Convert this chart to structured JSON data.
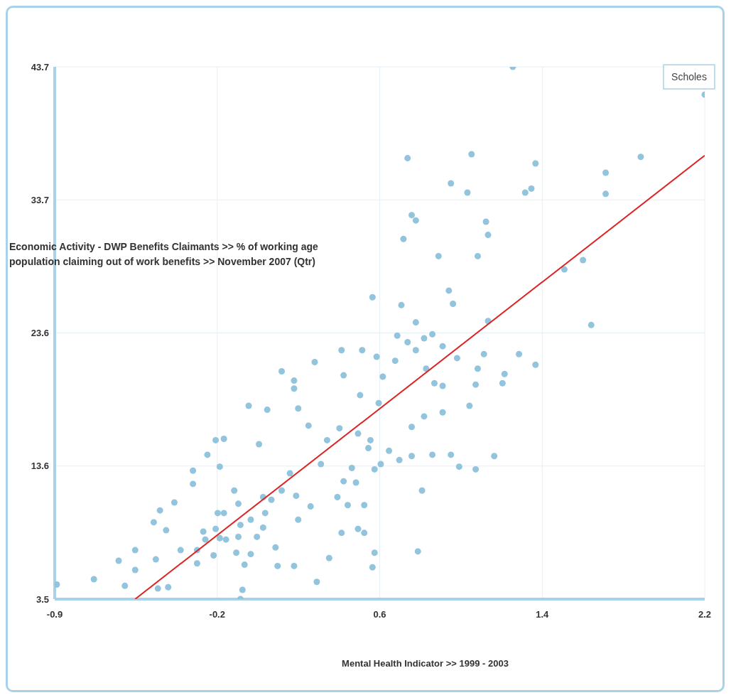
{
  "chart_data": {
    "type": "scatter",
    "xlabel": "Mental Health Indicator >>  1999 - 2003",
    "ylabel": "Economic Activity - DWP Benefits Claimants >> % of working age population claiming out of work benefits >>  November 2007 (Qtr)",
    "xlim": [
      -0.95,
      2.2
    ],
    "xticks": [
      {
        "value": -0.95,
        "label": "-0.9"
      },
      {
        "value": -0.1625,
        "label": "-0.2"
      },
      {
        "value": 0.625,
        "label": "0.6"
      },
      {
        "value": 1.4125,
        "label": "1.4"
      },
      2.2
    ],
    "ylim": [
      3.5,
      43.7
    ],
    "yticks": [
      3.5,
      {
        "value": 13.55,
        "label": "13.6"
      },
      23.6,
      {
        "value": 33.65,
        "label": "33.7"
      },
      43.7
    ],
    "grid": true,
    "annotations": [
      {
        "text": "Scholes",
        "x": 2.2,
        "y": 41.6
      }
    ],
    "series": [
      {
        "type": "scatter",
        "color": "#93c4dd",
        "marker": "circle",
        "x": [
          1.27,
          2.2,
          0.76,
          1.07,
          1.89,
          1.38,
          0.97,
          1.72,
          1.05,
          1.33,
          1.36,
          1.72,
          0.78,
          0.8,
          1.14,
          1.15,
          0.74,
          0.91,
          1.1,
          1.52,
          1.61,
          0.59,
          0.96,
          0.73,
          0.98,
          0.8,
          1.15,
          1.65,
          0.71,
          0.88,
          0.84,
          0.76,
          0.8,
          1.13,
          1.3,
          0.93,
          0.54,
          0.44,
          0.61,
          0.7,
          0.85,
          1.0,
          1.1,
          1.23,
          1.38,
          0.64,
          0.45,
          1.22,
          0.89,
          0.93,
          0.15,
          0.21,
          0.21,
          0.31,
          -0.01,
          0.08,
          0.23,
          0.53,
          0.62,
          0.93,
          0.84,
          1.06,
          1.09,
          0.28,
          0.37,
          0.43,
          0.04,
          -0.17,
          -0.13,
          -0.21,
          -0.15,
          0.58,
          0.52,
          0.78,
          0.67,
          0.57,
          0.72,
          0.78,
          0.88,
          0.97,
          1.01,
          1.09,
          1.18,
          0.63,
          0.49,
          0.34,
          0.6,
          -0.28,
          -0.28,
          -0.37,
          -0.44,
          -0.47,
          -0.41,
          -0.16,
          -0.08,
          -0.06,
          -0.13,
          -0.17,
          -0.23,
          -0.22,
          -0.15,
          -0.12,
          -0.05,
          0.06,
          0.1,
          0.15,
          0.19,
          0.45,
          0.51,
          0.42,
          0.47,
          0.55,
          0.29,
          0.22,
          0.07,
          0.0,
          0.06,
          0.03,
          -0.06,
          -0.07,
          0.0,
          -0.03,
          -0.26,
          -0.26,
          -0.34,
          -0.18,
          -0.46,
          -0.56,
          -0.64,
          -0.56,
          -0.76,
          -0.94,
          -0.61,
          -0.45,
          -0.4,
          -0.04,
          -0.05,
          0.13,
          0.21,
          0.12,
          0.23,
          0.32,
          0.38,
          0.44,
          0.52,
          0.55,
          0.6,
          0.59,
          0.81,
          0.83
        ],
        "values": [
          43.7,
          41.6,
          36.8,
          37.1,
          36.9,
          36.4,
          34.9,
          35.7,
          34.2,
          34.2,
          34.5,
          34.1,
          32.5,
          32.1,
          32.0,
          31.0,
          30.7,
          29.4,
          29.4,
          28.4,
          29.1,
          26.3,
          26.8,
          25.7,
          25.8,
          24.4,
          24.5,
          24.2,
          23.4,
          23.5,
          23.2,
          22.9,
          22.3,
          22.0,
          22.0,
          22.6,
          22.3,
          22.3,
          21.8,
          21.5,
          20.9,
          21.7,
          20.9,
          20.5,
          21.2,
          20.3,
          20.4,
          19.8,
          19.8,
          19.6,
          20.7,
          20.0,
          19.4,
          21.4,
          18.1,
          17.8,
          17.9,
          18.9,
          18.3,
          17.6,
          17.3,
          18.1,
          19.7,
          16.6,
          15.5,
          16.4,
          15.2,
          15.5,
          15.6,
          14.4,
          13.5,
          15.5,
          16.0,
          16.5,
          14.7,
          14.9,
          14.0,
          14.3,
          14.4,
          14.4,
          13.5,
          13.3,
          14.3,
          13.7,
          13.4,
          13.7,
          13.3,
          13.2,
          12.2,
          10.8,
          10.2,
          9.3,
          8.7,
          10.0,
          11.7,
          10.7,
          10.0,
          8.8,
          8.6,
          8.0,
          8.1,
          8.0,
          9.1,
          11.2,
          11.0,
          11.7,
          13.0,
          12.4,
          12.3,
          11.2,
          10.6,
          10.6,
          10.5,
          11.3,
          10.0,
          9.5,
          8.9,
          8.2,
          8.2,
          7.0,
          6.9,
          6.1,
          7.2,
          6.2,
          7.2,
          6.8,
          6.5,
          7.2,
          6.4,
          5.7,
          5.0,
          4.6,
          4.5,
          4.3,
          4.4,
          4.2,
          3.5,
          6.0,
          6.0,
          7.4,
          9.5,
          4.8,
          6.6,
          8.5,
          8.8,
          8.5,
          7.0,
          5.9,
          7.1,
          11.7
        ]
      },
      {
        "type": "line",
        "color": "#dd2222",
        "marker": "none",
        "x": [
          -0.56,
          2.2
        ],
        "values": [
          3.5,
          37.0
        ]
      }
    ]
  }
}
